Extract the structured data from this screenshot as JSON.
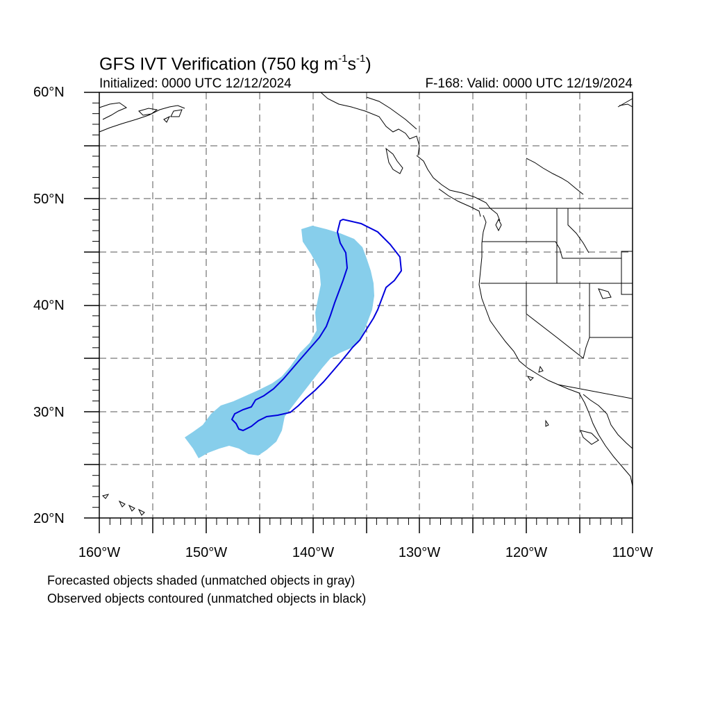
{
  "title": {
    "main": "GFS IVT Verification (750 kg m",
    "sup1": "-1",
    "mid": "s",
    "sup2": "-1",
    "end": ")"
  },
  "initialized": "Initialized: 0000 UTC 12/12/2024",
  "valid": "F-168: Valid: 0000 UTC 12/19/2024",
  "lat_labels": [
    "60°N",
    "50°N",
    "40°N",
    "30°N",
    "20°N"
  ],
  "lon_labels": [
    "160°W",
    "150°W",
    "140°W",
    "130°W",
    "120°W",
    "110°W"
  ],
  "caption_forecast": "Forecasted objects shaded (unmatched objects in gray)",
  "caption_observed": "Observed objects contoured (unmatched objects in black)",
  "map": {
    "lon_range": [
      -160,
      -110
    ],
    "lat_range": [
      20,
      60
    ],
    "grid_interval_deg": 5,
    "grid_style": "dashed gray",
    "forecast_object_color": "#87ceeb",
    "observed_object_color": "#0000dd",
    "coastline_color": "#000000"
  }
}
